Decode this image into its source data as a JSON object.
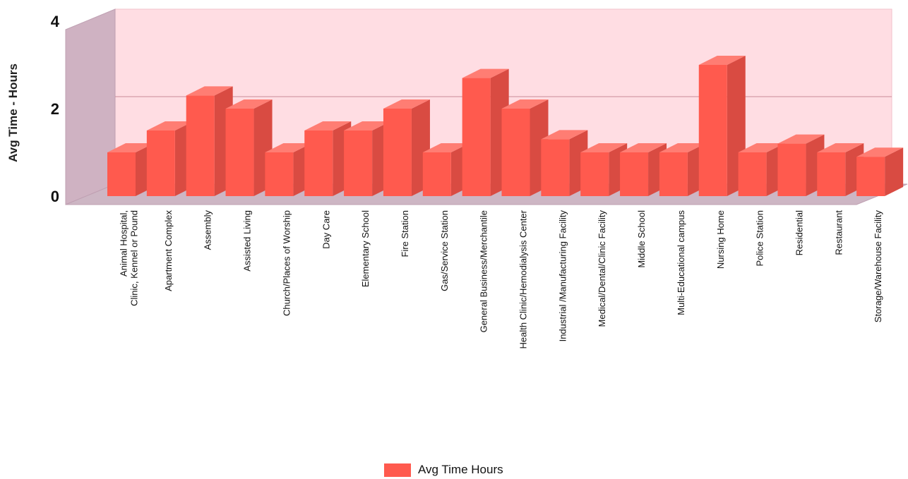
{
  "chart_data": {
    "type": "bar",
    "title": "",
    "xlabel": "",
    "ylabel": "Avg Time - Hours",
    "ylim": [
      0,
      4
    ],
    "yticks": [
      0,
      2,
      4
    ],
    "grid": true,
    "legend_position": "bottom-center",
    "categories": [
      [
        "Animal Hospital,",
        "Clinic, Kennel or Pound"
      ],
      [
        "Apartment Complex"
      ],
      [
        "Assembly"
      ],
      [
        "Assisted Living"
      ],
      [
        "Church/Places of Worship"
      ],
      [
        "Day Care"
      ],
      [
        "Elementary School"
      ],
      [
        "Fire Station"
      ],
      [
        "Gas/Service Station"
      ],
      [
        "General Business/Merchantile"
      ],
      [
        "Health Clinic/Hemodialysis Center"
      ],
      [
        "Industrial /Manufacturing Facility"
      ],
      [
        "Medical/Dental/Clinic Facility"
      ],
      [
        "Middle School"
      ],
      [
        "Multi-Educational campus"
      ],
      [
        "Nursing Home"
      ],
      [
        "Police Station"
      ],
      [
        "Residential"
      ],
      [
        "Restaurant"
      ],
      [
        "Storage/Warehouse Facility"
      ]
    ],
    "series": [
      {
        "name": "Avg Time Hours",
        "color": "#ff5a4e",
        "values": [
          1.0,
          1.5,
          2.3,
          2.0,
          1.0,
          1.5,
          1.5,
          2.0,
          1.0,
          2.7,
          2.0,
          1.3,
          1.0,
          1.0,
          1.0,
          3.0,
          1.0,
          1.2,
          1.0,
          0.9
        ]
      }
    ]
  }
}
